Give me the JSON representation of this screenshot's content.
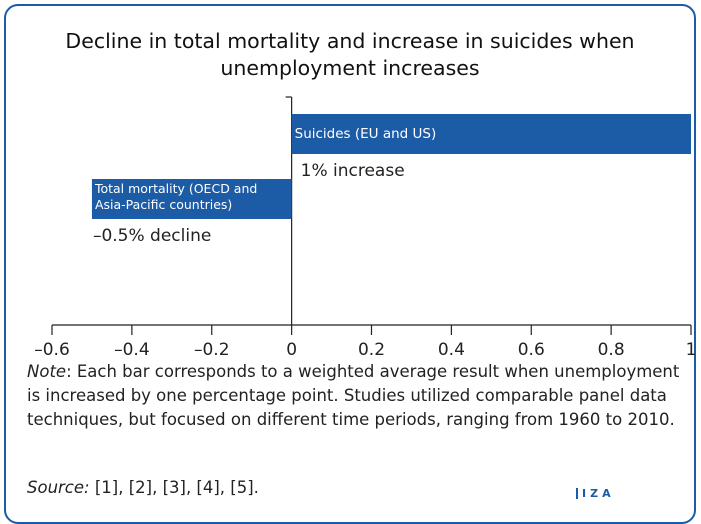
{
  "chart_data": {
    "type": "hbar",
    "title": "Decline in total mortality and increase in suicides when unemployment increases",
    "categories": [
      "Suicides (EU and US)",
      "Total mortality (OECD and Asia-Pacific countries)"
    ],
    "values": [
      1,
      -0.5
    ],
    "value_labels": [
      "1% increase",
      "–0.5% decline"
    ],
    "color": "#1c5ba6",
    "xlim": [
      -0.6,
      1
    ],
    "xticks": [
      {
        "value": -0.6,
        "label": "–0.6"
      },
      {
        "value": -0.4,
        "label": "–0.4"
      },
      {
        "value": -0.2,
        "label": "–0.2"
      },
      0,
      0.2,
      0.4,
      0.6,
      0.8,
      1
    ],
    "note": {
      "label": "Note",
      "text": ": Each bar corresponds to a weighted average result when unemployment is increased by one percentage point. Studies utilized comparable panel data techniques, but focused on different time periods, ranging from 1960 to 2010."
    },
    "source": {
      "label": "Source:",
      "text": "[1], [2], [3], [4], [5]."
    },
    "logo": "IZA"
  }
}
